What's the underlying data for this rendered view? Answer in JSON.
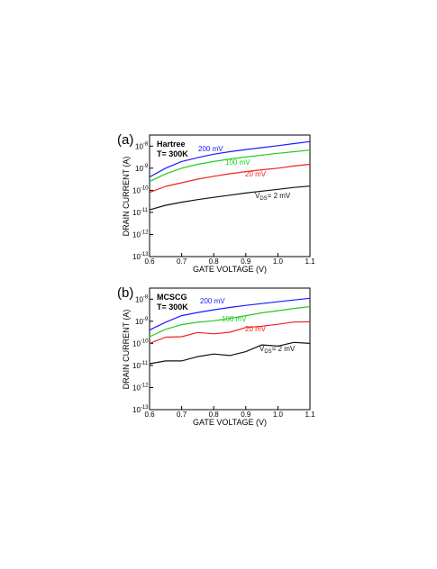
{
  "chart_data": [
    {
      "type": "line",
      "panel_label": "(a)",
      "annotation_lines": [
        "Hartree",
        "T= 300K"
      ],
      "xlabel": "GATE VOLTAGE (V)",
      "ylabel": "DRAIN CURRENT (A)",
      "xlim": [
        0.6,
        1.1
      ],
      "ylim_log10": [
        -13,
        -7.5
      ],
      "yscale": "log",
      "xticks": [
        "0.6",
        "0.7",
        "0.8",
        "0.9",
        "1.0",
        "1.1"
      ],
      "yticks": [
        {
          "base": "10",
          "exp": "-8",
          "value": 1e-08
        },
        {
          "base": "10",
          "exp": "-9",
          "value": 1e-09
        },
        {
          "base": "10",
          "exp": "-10",
          "value": 1e-10
        },
        {
          "base": "10",
          "exp": "-11",
          "value": 1e-11
        },
        {
          "base": "10",
          "exp": "-12",
          "value": 1e-12
        },
        {
          "base": "10",
          "exp": "-13",
          "value": 1e-13
        }
      ],
      "grid": false,
      "series": [
        {
          "name": "200 mV",
          "color": "#1a1aff",
          "x": [
            0.6,
            0.65,
            0.7,
            0.75,
            0.8,
            0.85,
            0.9,
            0.95,
            1.0,
            1.05,
            1.1
          ],
          "y": [
            4e-10,
            1e-09,
            2e-09,
            3e-09,
            4.3e-09,
            5.6e-09,
            7e-09,
            8.5e-09,
            1.05e-08,
            1.3e-08,
            1.6e-08
          ]
        },
        {
          "name": "100 mV",
          "color": "#22cc22",
          "x": [
            0.6,
            0.65,
            0.7,
            0.75,
            0.8,
            0.85,
            0.9,
            0.95,
            1.0,
            1.05,
            1.1
          ],
          "y": [
            2.5e-10,
            5.5e-10,
            1e-09,
            1.5e-09,
            2e-09,
            2.6e-09,
            3.2e-09,
            3.9e-09,
            4.7e-09,
            5.6e-09,
            6.6e-09
          ]
        },
        {
          "name": "20 mV",
          "color": "#ee2222",
          "x": [
            0.6,
            0.65,
            0.7,
            0.75,
            0.8,
            0.85,
            0.9,
            0.95,
            1.0,
            1.05,
            1.1
          ],
          "y": [
            8e-11,
            1.5e-10,
            2.2e-10,
            3.2e-10,
            4.3e-10,
            5.6e-10,
            7e-10,
            8.5e-10,
            1e-09,
            1.25e-09,
            1.5e-09
          ]
        },
        {
          "name": "V_DS= 2 mV",
          "color": "#111111",
          "x": [
            0.6,
            0.65,
            0.7,
            0.75,
            0.8,
            0.85,
            0.9,
            0.95,
            1.0,
            1.05,
            1.1
          ],
          "y": [
            1.3e-11,
            2.1e-11,
            2.9e-11,
            3.8e-11,
            4.8e-11,
            6e-11,
            7.5e-11,
            9.2e-11,
            1.1e-10,
            1.35e-10,
            1.55e-10
          ]
        }
      ],
      "labels": [
        {
          "series": 0,
          "text": "200 mV"
        },
        {
          "series": 1,
          "text": "100 mV"
        },
        {
          "series": 2,
          "text": "20 mV"
        },
        {
          "series": 3,
          "text_main": "V",
          "text_sub": "DS",
          "text_after": "= 2 mV"
        }
      ]
    },
    {
      "type": "line",
      "panel_label": "(b)",
      "annotation_lines": [
        "MCSCG",
        "T= 300K"
      ],
      "xlabel": "GATE VOLTAGE (V)",
      "ylabel": "DRAIN CURRENT (A)",
      "xlim": [
        0.6,
        1.1
      ],
      "ylim_log10": [
        -13,
        -7.5
      ],
      "yscale": "log",
      "xticks": [
        "0.6",
        "0.7",
        "0.8",
        "0.9",
        "1.0",
        "1.1"
      ],
      "yticks": [
        {
          "base": "10",
          "exp": "-8",
          "value": 1e-08
        },
        {
          "base": "10",
          "exp": "-9",
          "value": 1e-09
        },
        {
          "base": "10",
          "exp": "-10",
          "value": 1e-10
        },
        {
          "base": "10",
          "exp": "-11",
          "value": 1e-11
        },
        {
          "base": "10",
          "exp": "-12",
          "value": 1e-12
        },
        {
          "base": "10",
          "exp": "-13",
          "value": 1e-13
        }
      ],
      "grid": false,
      "series": [
        {
          "name": "200 mV",
          "color": "#1a1aff",
          "x": [
            0.6,
            0.65,
            0.7,
            0.75,
            0.8,
            0.85,
            0.9,
            0.95,
            1.0,
            1.05,
            1.1
          ],
          "y": [
            4e-10,
            9e-10,
            1.8e-09,
            2.5e-09,
            3.3e-09,
            4.2e-09,
            5.2e-09,
            6.3e-09,
            7.6e-09,
            9.2e-09,
            1.1e-08
          ]
        },
        {
          "name": "100 mV",
          "color": "#22cc22",
          "x": [
            0.6,
            0.65,
            0.7,
            0.75,
            0.8,
            0.85,
            0.9,
            0.95,
            1.0,
            1.05,
            1.1
          ],
          "y": [
            2e-10,
            4.3e-10,
            7e-10,
            9e-10,
            1.05e-09,
            1.35e-09,
            1.8e-09,
            2.4e-09,
            3e-09,
            3.8e-09,
            4.6e-09
          ]
        },
        {
          "name": "20 mV",
          "color": "#ee2222",
          "x": [
            0.6,
            0.65,
            0.7,
            0.75,
            0.8,
            0.85,
            0.9,
            0.95,
            1.0,
            1.05,
            1.1
          ],
          "y": [
            1e-10,
            1.9e-10,
            2e-10,
            3.1e-10,
            2.7e-10,
            3.2e-10,
            5.2e-10,
            6e-10,
            7.3e-10,
            9.2e-10,
            9.5e-10
          ]
        },
        {
          "name": "V_DS= 2 mV",
          "color": "#111111",
          "x": [
            0.6,
            0.65,
            0.7,
            0.75,
            0.8,
            0.85,
            0.9,
            0.95,
            1.0,
            1.05,
            1.1
          ],
          "y": [
            1.2e-11,
            1.6e-11,
            1.6e-11,
            2.5e-11,
            3.3e-11,
            2.8e-11,
            4.2e-11,
            8.5e-11,
            7.5e-11,
            1.1e-10,
            1e-10
          ]
        }
      ],
      "labels": [
        {
          "series": 0,
          "text": "200 mV"
        },
        {
          "series": 1,
          "text": "100 mV"
        },
        {
          "series": 2,
          "text": "20 mV"
        },
        {
          "series": 3,
          "text_main": "V",
          "text_sub": "DS",
          "text_after": "= 2 mV"
        }
      ]
    }
  ]
}
